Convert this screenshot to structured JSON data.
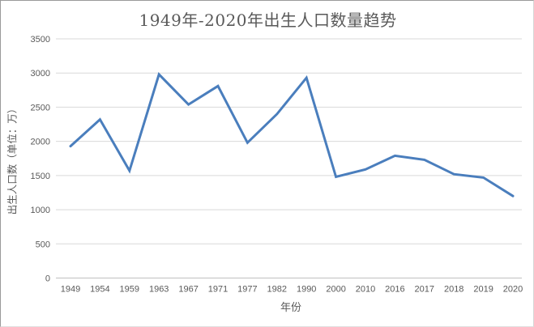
{
  "chart_data": {
    "type": "line",
    "title": "1949年-2020年出生人口数量趋势",
    "xlabel": "年份",
    "ylabel": "出生人口数（单位：万）",
    "categories": [
      "1949",
      "1954",
      "1959",
      "1963",
      "1967",
      "1971",
      "1977",
      "1982",
      "1990",
      "2000",
      "2010",
      "2016",
      "2017",
      "2018",
      "2019",
      "2020"
    ],
    "values": [
      1930,
      2320,
      1570,
      2980,
      2540,
      2810,
      1980,
      2400,
      2930,
      1480,
      1590,
      1790,
      1730,
      1520,
      1470,
      1200
    ],
    "ylim": [
      0,
      3500
    ],
    "ytick_step": 500,
    "yticks": [
      "0",
      "500",
      "1000",
      "1500",
      "2000",
      "2500",
      "3000",
      "3500"
    ],
    "grid": true,
    "legend_shown": false,
    "colors": {
      "line": "#4A7EBD",
      "grid": "#D9D9D9",
      "axis_line": "#C0C0C0",
      "tick_text": "#595959",
      "title_text": "#595959"
    }
  }
}
